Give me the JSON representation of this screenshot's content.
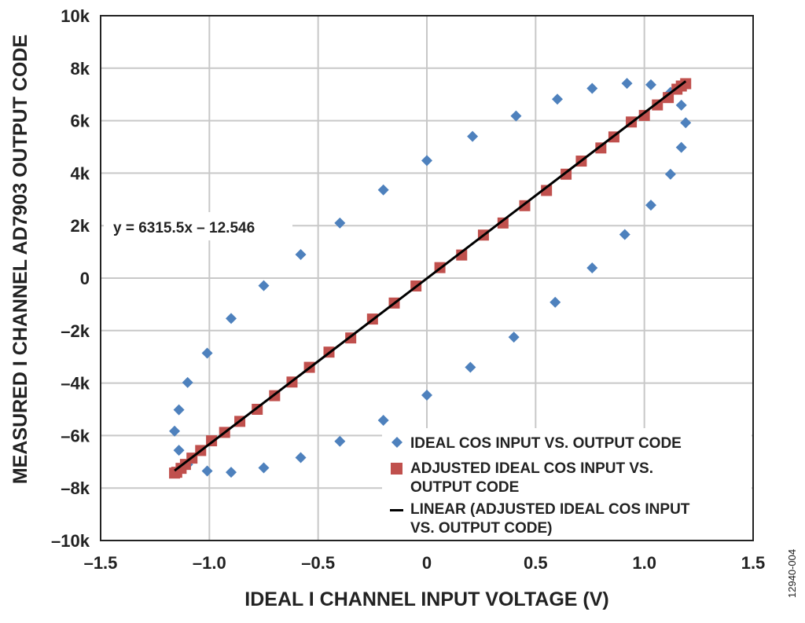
{
  "chart_data": {
    "type": "scatter",
    "xlabel": "IDEAL I CHANNEL INPUT VOLTAGE (V)",
    "ylabel": "MEASURED I CHANNEL AD7903 OUTPUT CODE",
    "xlim": [
      -1.5,
      1.5
    ],
    "ylim": [
      -10000,
      10000
    ],
    "x_ticks": [
      -1.5,
      -1.0,
      -0.5,
      0,
      0.5,
      1.0,
      1.5
    ],
    "x_tick_labels": [
      "–1.5",
      "–1.0",
      "–0.5",
      "0",
      "0.5",
      "1.0",
      "1.5"
    ],
    "y_ticks": [
      10000,
      8000,
      6000,
      4000,
      2000,
      0,
      -2000,
      -4000,
      -6000,
      -8000,
      -10000
    ],
    "y_tick_labels": [
      "10k",
      "8k",
      "6k",
      "4k",
      "2k",
      "0",
      "–2k",
      "–4k",
      "–6k",
      "–8k",
      "–10k"
    ],
    "grid": true,
    "legend_position": "bottom-right",
    "annotation": "y = 6315.5x – 12.546",
    "figure_id": "12940-004",
    "series": [
      {
        "name": "IDEAL COS INPUT VS. OUTPUT CODE",
        "marker": "diamond",
        "color": "#4e81bd",
        "points": [
          [
            0.0,
            4480
          ],
          [
            0.21,
            5400
          ],
          [
            0.41,
            6180
          ],
          [
            0.6,
            6820
          ],
          [
            0.76,
            7230
          ],
          [
            0.92,
            7420
          ],
          [
            1.03,
            7370
          ],
          [
            1.12,
            7080
          ],
          [
            1.17,
            6590
          ],
          [
            1.19,
            5920
          ],
          [
            1.17,
            4980
          ],
          [
            1.12,
            3960
          ],
          [
            1.03,
            2780
          ],
          [
            0.91,
            1660
          ],
          [
            0.76,
            390
          ],
          [
            0.59,
            -920
          ],
          [
            0.4,
            -2250
          ],
          [
            0.2,
            -3400
          ],
          [
            0.0,
            -4460
          ],
          [
            -0.2,
            -5420
          ],
          [
            -0.4,
            -6220
          ],
          [
            -0.58,
            -6840
          ],
          [
            -0.75,
            -7230
          ],
          [
            -0.9,
            -7400
          ],
          [
            -1.01,
            -7350
          ],
          [
            -1.1,
            -7100
          ],
          [
            -1.14,
            -6560
          ],
          [
            -1.16,
            -5830
          ],
          [
            -1.14,
            -5020
          ],
          [
            -1.1,
            -3980
          ],
          [
            -1.01,
            -2860
          ],
          [
            -0.9,
            -1540
          ],
          [
            -0.75,
            -290
          ],
          [
            -0.58,
            900
          ],
          [
            -0.4,
            2100
          ],
          [
            -0.2,
            3360
          ]
        ]
      },
      {
        "name": "ADJUSTED IDEAL COS INPUT VS. OUTPUT CODE",
        "marker": "square",
        "color": "#c0504d",
        "points": [
          [
            1.19,
            7410
          ],
          [
            1.17,
            7320
          ],
          [
            1.15,
            7200
          ],
          [
            1.11,
            6880
          ],
          [
            1.06,
            6600
          ],
          [
            1.0,
            6200
          ],
          [
            0.94,
            5950
          ],
          [
            0.86,
            5380
          ],
          [
            0.8,
            4960
          ],
          [
            0.71,
            4460
          ],
          [
            0.64,
            3960
          ],
          [
            0.55,
            3340
          ],
          [
            0.45,
            2760
          ],
          [
            0.35,
            2100
          ],
          [
            0.26,
            1640
          ],
          [
            0.16,
            880
          ],
          [
            0.06,
            400
          ],
          [
            -0.05,
            -300
          ],
          [
            -0.15,
            -950
          ],
          [
            -0.25,
            -1560
          ],
          [
            -0.35,
            -2280
          ],
          [
            -0.45,
            -2820
          ],
          [
            -0.54,
            -3400
          ],
          [
            -0.62,
            -3960
          ],
          [
            -0.7,
            -4480
          ],
          [
            -0.78,
            -5000
          ],
          [
            -0.86,
            -5460
          ],
          [
            -0.93,
            -5880
          ],
          [
            -0.99,
            -6200
          ],
          [
            -1.04,
            -6570
          ],
          [
            -1.08,
            -6860
          ],
          [
            -1.11,
            -7100
          ],
          [
            -1.13,
            -7250
          ],
          [
            -1.15,
            -7400
          ],
          [
            -1.16,
            -7430
          ]
        ]
      },
      {
        "name": "LINEAR (ADJUSTED IDEAL COS INPUT VS. OUTPUT CODE)",
        "marker": "line",
        "color": "#000000",
        "slope": 6315.5,
        "intercept": -12.546,
        "x_range": [
          -1.16,
          1.19
        ]
      }
    ]
  }
}
